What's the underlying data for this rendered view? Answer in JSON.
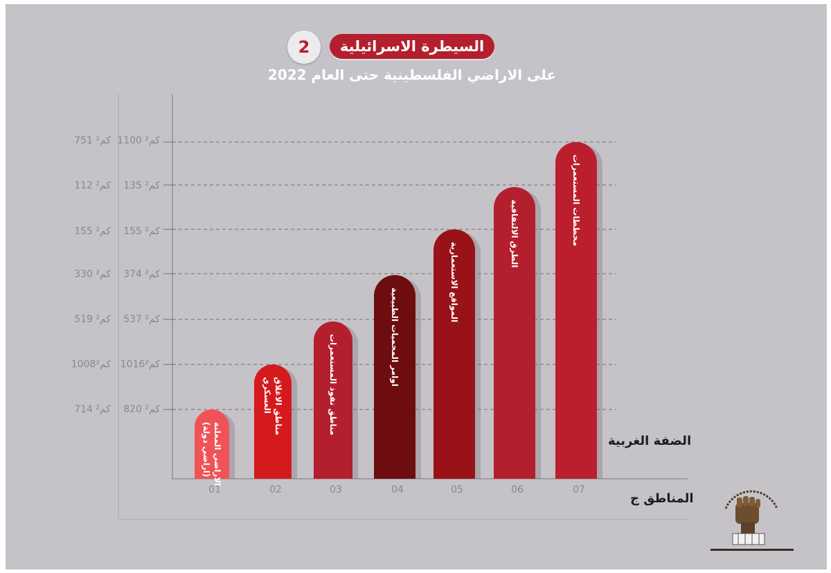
{
  "header": {
    "title": "السيطرة الاسرائيلية",
    "badge_number": "2",
    "subtitle": "على الاراضي الفلسطينية حتى العام 2022"
  },
  "labels": {
    "west_bank": "الضفة الغربية",
    "area_c": "المناطق ج"
  },
  "chart_data": {
    "type": "bar",
    "title": "السيطرة الاسرائيلية",
    "subtitle": "على الاراضي الفلسطينية حتى العام 2022",
    "categories": [
      "01",
      "02",
      "03",
      "04",
      "05",
      "06",
      "07"
    ],
    "bar_labels": [
      "الاراضي المعلنة (اراضي دولة)",
      "مناطق الاغلاق العسكري",
      "مناطق نفوذ المستعمرات",
      "اوامر المحميات الطبيعية",
      "المواقع الاستعمارية",
      "الطرق الالتفافية",
      "مخططات المستعمرات"
    ],
    "series": [
      {
        "name": "الضفة الغربية",
        "values": [
          820,
          1016,
          537,
          374,
          155,
          135,
          1100
        ]
      },
      {
        "name": "المناطق ج",
        "values": [
          714,
          1008,
          519,
          330,
          155,
          112,
          751
        ]
      }
    ],
    "west_bank_ticks": [
      "1100 كم²",
      "135 كم²",
      "155 كم²",
      "374 كم²",
      "537 كم²",
      "1016كم²",
      "820 كم²"
    ],
    "area_c_ticks": [
      "751 كم²",
      "112 كم²",
      "155 كم²",
      "330 كم²",
      "519 كم²",
      "1008كم²",
      "714 كم²"
    ],
    "bar_colors": [
      "#f05357",
      "#d51a1d",
      "#b41f2e",
      "#6e0d10",
      "#991218",
      "#b41f2e",
      "#bb1f2e"
    ],
    "grid": true
  }
}
